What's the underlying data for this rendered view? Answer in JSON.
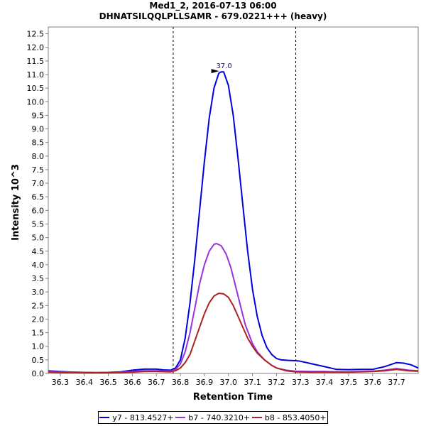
{
  "chart_data": {
    "type": "line",
    "title": "Med1_2, 2016-07-13 06:00",
    "subtitle": "DHNATSILQQLPLLSAMR - 679.0221+++ (heavy)",
    "xlabel": "Retention Time",
    "ylabel": "Intensity 10^3",
    "xlim": [
      36.25,
      37.79
    ],
    "ylim": [
      0,
      12.75
    ],
    "x_ticks": [
      "36.3",
      "36.4",
      "36.5",
      "36.6",
      "36.7",
      "36.8",
      "36.9",
      "37.0",
      "37.1",
      "37.2",
      "37.3",
      "37.4",
      "37.5",
      "37.6",
      "37.7"
    ],
    "y_ticks": [
      "0.0",
      "0.5",
      "1.0",
      "1.5",
      "2.0",
      "2.5",
      "3.0",
      "3.5",
      "4.0",
      "4.5",
      "5.0",
      "5.5",
      "6.0",
      "6.5",
      "7.0",
      "7.5",
      "8.0",
      "8.5",
      "9.0",
      "9.5",
      "10.0",
      "10.5",
      "11.0",
      "11.5",
      "12.0",
      "12.5"
    ],
    "grid": false,
    "legend_position": "bottom",
    "integration_bounds": [
      36.77,
      37.28
    ],
    "peak_annotation": {
      "label": "37.0",
      "x": 36.97,
      "y": 11.1,
      "color": "#0000cc"
    },
    "series": [
      {
        "name": "y7 - 813.4527+",
        "color": "#0000e0",
        "points": [
          [
            36.25,
            0.1
          ],
          [
            36.3,
            0.07
          ],
          [
            36.35,
            0.05
          ],
          [
            36.4,
            0.04
          ],
          [
            36.45,
            0.03
          ],
          [
            36.5,
            0.04
          ],
          [
            36.55,
            0.06
          ],
          [
            36.6,
            0.12
          ],
          [
            36.65,
            0.16
          ],
          [
            36.7,
            0.16
          ],
          [
            36.73,
            0.13
          ],
          [
            36.76,
            0.12
          ],
          [
            36.78,
            0.2
          ],
          [
            36.8,
            0.5
          ],
          [
            36.82,
            1.3
          ],
          [
            36.84,
            2.6
          ],
          [
            36.86,
            4.2
          ],
          [
            36.88,
            6.0
          ],
          [
            36.9,
            7.8
          ],
          [
            36.92,
            9.4
          ],
          [
            36.94,
            10.5
          ],
          [
            36.96,
            11.05
          ],
          [
            36.97,
            11.1
          ],
          [
            36.98,
            11.1
          ],
          [
            37.0,
            10.6
          ],
          [
            37.02,
            9.5
          ],
          [
            37.04,
            7.9
          ],
          [
            37.06,
            6.2
          ],
          [
            37.08,
            4.5
          ],
          [
            37.1,
            3.1
          ],
          [
            37.12,
            2.1
          ],
          [
            37.14,
            1.4
          ],
          [
            37.16,
            0.95
          ],
          [
            37.18,
            0.7
          ],
          [
            37.2,
            0.55
          ],
          [
            37.22,
            0.5
          ],
          [
            37.25,
            0.48
          ],
          [
            37.28,
            0.47
          ],
          [
            37.3,
            0.45
          ],
          [
            37.35,
            0.35
          ],
          [
            37.4,
            0.25
          ],
          [
            37.45,
            0.15
          ],
          [
            37.5,
            0.14
          ],
          [
            37.55,
            0.15
          ],
          [
            37.6,
            0.15
          ],
          [
            37.65,
            0.25
          ],
          [
            37.7,
            0.4
          ],
          [
            37.73,
            0.38
          ],
          [
            37.76,
            0.32
          ],
          [
            37.79,
            0.2
          ]
        ]
      },
      {
        "name": "b7 - 740.3210+",
        "color": "#9933dd",
        "points": [
          [
            36.25,
            0.08
          ],
          [
            36.3,
            0.06
          ],
          [
            36.35,
            0.05
          ],
          [
            36.4,
            0.04
          ],
          [
            36.45,
            0.03
          ],
          [
            36.5,
            0.04
          ],
          [
            36.55,
            0.05
          ],
          [
            36.6,
            0.07
          ],
          [
            36.65,
            0.1
          ],
          [
            36.7,
            0.1
          ],
          [
            36.76,
            0.09
          ],
          [
            36.78,
            0.15
          ],
          [
            36.8,
            0.35
          ],
          [
            36.82,
            0.8
          ],
          [
            36.84,
            1.5
          ],
          [
            36.86,
            2.4
          ],
          [
            36.88,
            3.3
          ],
          [
            36.9,
            4.0
          ],
          [
            36.92,
            4.5
          ],
          [
            36.94,
            4.75
          ],
          [
            36.95,
            4.78
          ],
          [
            36.97,
            4.7
          ],
          [
            36.99,
            4.4
          ],
          [
            37.01,
            3.9
          ],
          [
            37.03,
            3.2
          ],
          [
            37.05,
            2.5
          ],
          [
            37.07,
            1.8
          ],
          [
            37.1,
            1.1
          ],
          [
            37.12,
            0.8
          ],
          [
            37.15,
            0.5
          ],
          [
            37.18,
            0.3
          ],
          [
            37.2,
            0.2
          ],
          [
            37.24,
            0.12
          ],
          [
            37.28,
            0.08
          ],
          [
            37.35,
            0.07
          ],
          [
            37.4,
            0.07
          ],
          [
            37.45,
            0.06
          ],
          [
            37.5,
            0.06
          ],
          [
            37.55,
            0.07
          ],
          [
            37.6,
            0.08
          ],
          [
            37.65,
            0.12
          ],
          [
            37.7,
            0.18
          ],
          [
            37.75,
            0.12
          ],
          [
            37.79,
            0.1
          ]
        ]
      },
      {
        "name": "b8 - 853.4050+",
        "color": "#aa2222",
        "points": [
          [
            36.25,
            0.05
          ],
          [
            36.3,
            0.04
          ],
          [
            36.35,
            0.04
          ],
          [
            36.4,
            0.03
          ],
          [
            36.45,
            0.03
          ],
          [
            36.5,
            0.03
          ],
          [
            36.55,
            0.04
          ],
          [
            36.6,
            0.05
          ],
          [
            36.65,
            0.07
          ],
          [
            36.7,
            0.07
          ],
          [
            36.76,
            0.06
          ],
          [
            36.78,
            0.1
          ],
          [
            36.8,
            0.2
          ],
          [
            36.82,
            0.4
          ],
          [
            36.84,
            0.7
          ],
          [
            36.86,
            1.2
          ],
          [
            36.88,
            1.7
          ],
          [
            36.9,
            2.2
          ],
          [
            36.92,
            2.6
          ],
          [
            36.94,
            2.85
          ],
          [
            36.96,
            2.95
          ],
          [
            36.98,
            2.93
          ],
          [
            37.0,
            2.8
          ],
          [
            37.02,
            2.5
          ],
          [
            37.04,
            2.1
          ],
          [
            37.06,
            1.7
          ],
          [
            37.08,
            1.3
          ],
          [
            37.1,
            1.0
          ],
          [
            37.12,
            0.75
          ],
          [
            37.15,
            0.5
          ],
          [
            37.18,
            0.3
          ],
          [
            37.2,
            0.2
          ],
          [
            37.24,
            0.1
          ],
          [
            37.28,
            0.06
          ],
          [
            37.35,
            0.05
          ],
          [
            37.4,
            0.05
          ],
          [
            37.45,
            0.05
          ],
          [
            37.5,
            0.05
          ],
          [
            37.55,
            0.06
          ],
          [
            37.6,
            0.07
          ],
          [
            37.65,
            0.1
          ],
          [
            37.7,
            0.15
          ],
          [
            37.75,
            0.1
          ],
          [
            37.79,
            0.08
          ]
        ]
      }
    ]
  }
}
